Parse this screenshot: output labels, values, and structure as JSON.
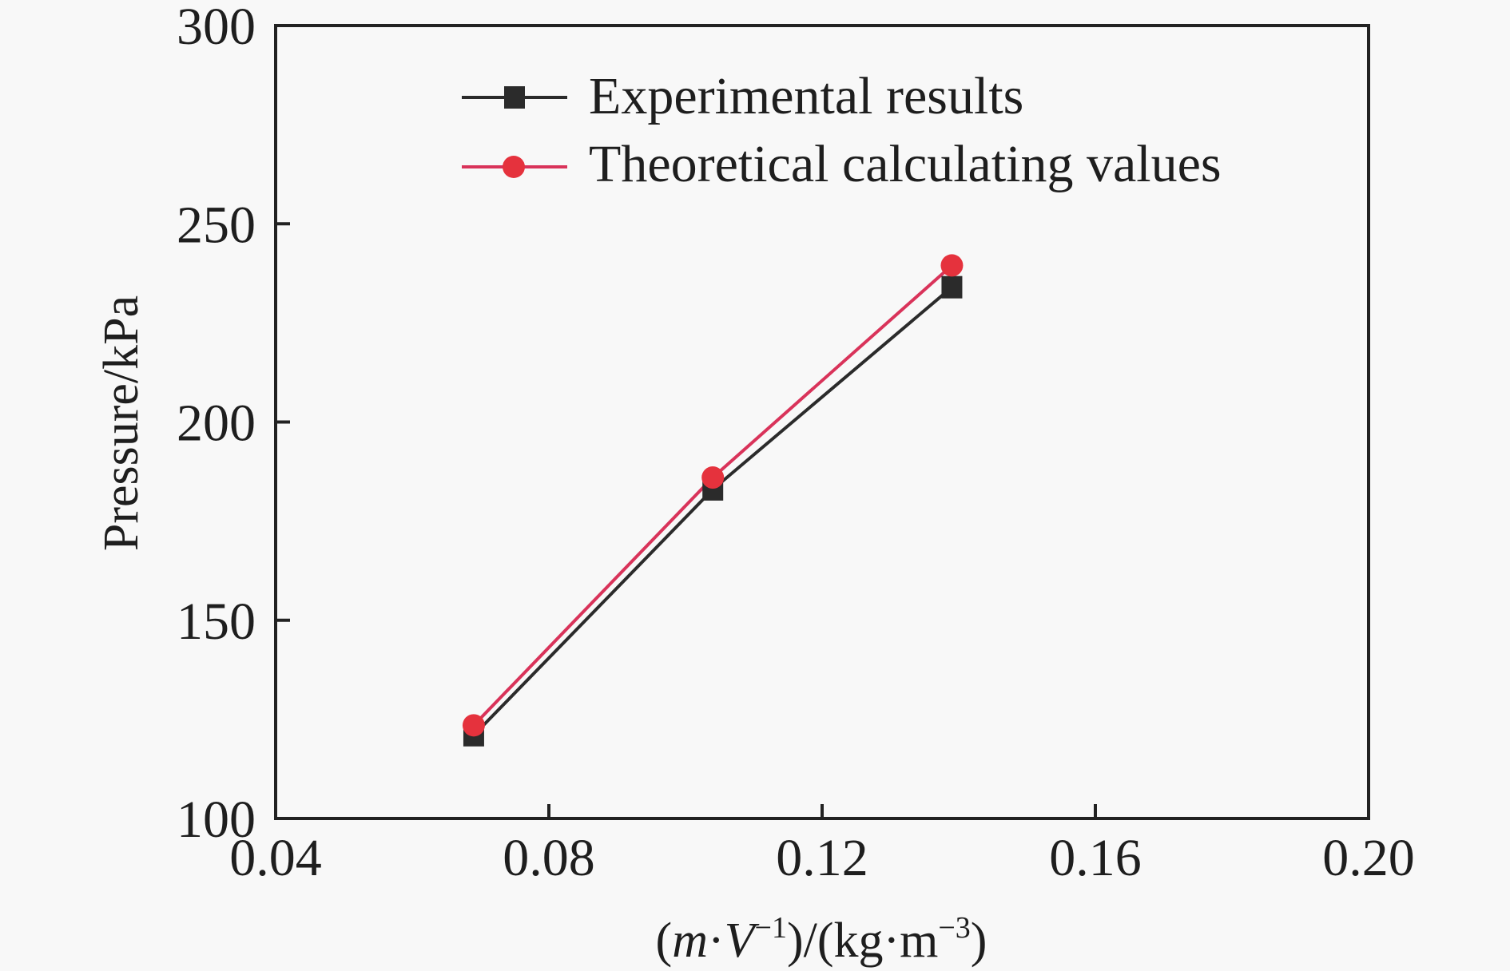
{
  "chart_data": {
    "type": "line",
    "title": "",
    "xlabel": {
      "parts": [
        {
          "text": "(",
          "italic": false,
          "sup": false
        },
        {
          "text": "m",
          "italic": true,
          "sup": false
        },
        {
          "text": "·",
          "italic": false,
          "sup": false
        },
        {
          "text": "V",
          "italic": true,
          "sup": false
        },
        {
          "text": "−1",
          "italic": false,
          "sup": true
        },
        {
          "text": ")/(kg·m",
          "italic": false,
          "sup": false
        },
        {
          "text": "−3",
          "italic": false,
          "sup": true
        },
        {
          "text": ")",
          "italic": false,
          "sup": false
        }
      ]
    },
    "ylabel": "Pressure/kPa",
    "xlim": [
      0.04,
      0.2
    ],
    "ylim": [
      100,
      300
    ],
    "xticks": [
      0.04,
      0.08,
      0.12,
      0.16,
      0.2
    ],
    "xtick_labels": [
      "0.04",
      "0.08",
      "0.12",
      "0.16",
      "0.20"
    ],
    "yticks": [
      100,
      150,
      200,
      250,
      300
    ],
    "ytick_labels": [
      "100",
      "150",
      "200",
      "250",
      "300"
    ],
    "grid": false,
    "legend_position": "top-center",
    "x": [
      0.069,
      0.104,
      0.139
    ],
    "series": [
      {
        "name": "Experimental results",
        "marker": "square",
        "color": "#2b2b2b",
        "values": [
          121,
          183,
          234
        ]
      },
      {
        "name": "Theoretical calculating values",
        "marker": "circle",
        "color": "#e5323d",
        "line_color": "#d9335a",
        "values": [
          123.5,
          186,
          239.5
        ]
      }
    ]
  },
  "colors": {
    "background": "#f8f8f8",
    "axis": "#222222"
  }
}
